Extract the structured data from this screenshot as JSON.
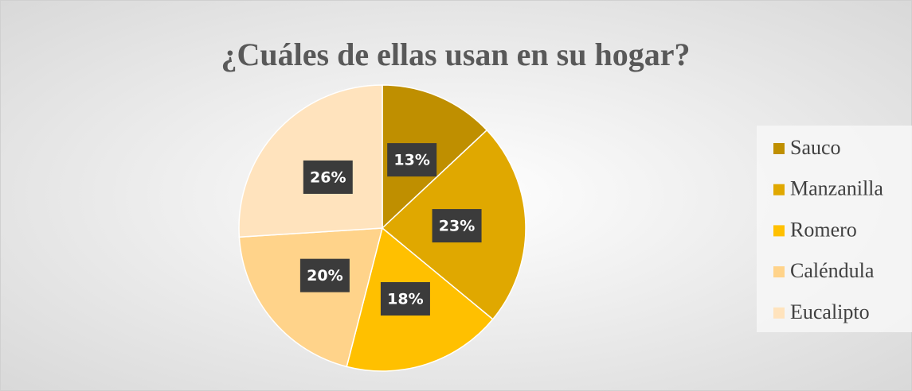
{
  "chart_data": {
    "type": "pie",
    "title": "¿Cuáles de ellas usan en su hogar?",
    "categories": [
      "Sauco",
      "Manzanilla",
      "Romero",
      "Caléndula",
      "Eucalipto"
    ],
    "values": [
      13,
      23,
      18,
      20,
      26
    ],
    "value_labels": [
      "13%",
      "23%",
      "18%",
      "20%",
      "26%"
    ],
    "colors": [
      "#bf8f00",
      "#e0a800",
      "#ffc000",
      "#ffd38a",
      "#ffe3bd"
    ],
    "legend": "right"
  }
}
